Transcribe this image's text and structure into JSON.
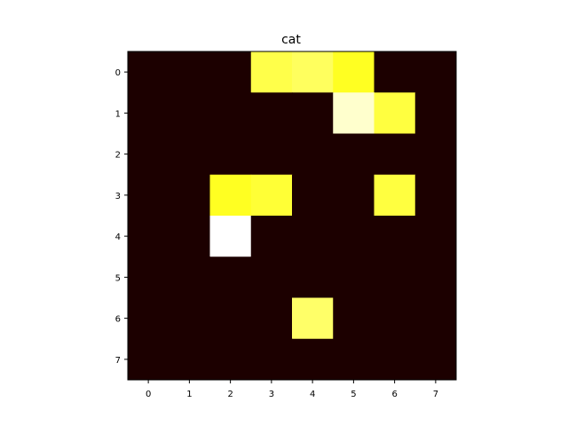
{
  "chart_data": {
    "type": "heatmap",
    "title": "cat",
    "xlabel": "",
    "ylabel": "",
    "colormap": "hot",
    "x_ticks": [
      "0",
      "1",
      "2",
      "3",
      "4",
      "5",
      "6",
      "7"
    ],
    "y_ticks": [
      "0",
      "1",
      "2",
      "3",
      "4",
      "5",
      "6",
      "7"
    ],
    "grid": false,
    "colorbar": false,
    "values": [
      [
        0,
        0,
        0,
        0.82,
        0.84,
        0.78,
        0,
        0
      ],
      [
        0,
        0,
        0,
        0,
        0,
        0.95,
        0.81,
        0
      ],
      [
        0,
        0,
        0,
        0,
        0,
        0,
        0,
        0
      ],
      [
        0,
        0,
        0.78,
        0.8,
        0,
        0,
        0.81,
        0
      ],
      [
        0,
        0,
        1.0,
        0,
        0,
        0,
        0,
        0
      ],
      [
        0,
        0,
        0,
        0,
        0,
        0,
        0,
        0
      ],
      [
        0,
        0,
        0,
        0,
        0.85,
        0,
        0,
        0
      ],
      [
        0,
        0,
        0,
        0,
        0,
        0,
        0,
        0
      ]
    ]
  }
}
